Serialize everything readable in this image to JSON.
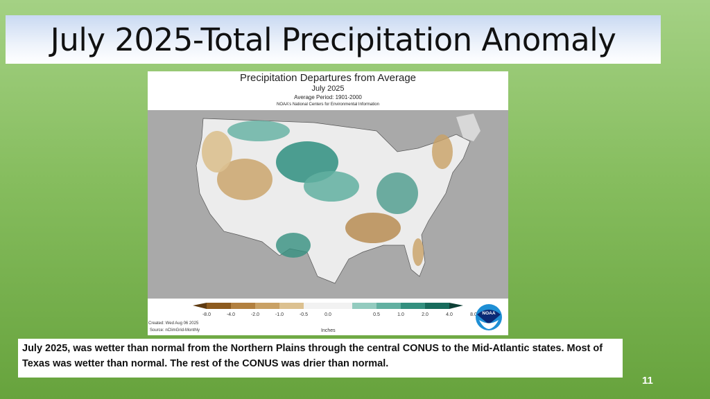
{
  "slide": {
    "title": "July 2025-Total Precipitation Anomaly",
    "caption": "July 2025, was wetter than normal from the Northern Plains through the central CONUS to the Mid-Atlantic states.  Most of Texas was wetter than normal. The rest of the CONUS was drier than normal.",
    "page_number": "11"
  },
  "map": {
    "title": "Precipitation Departures from Average",
    "subtitle": "July 2025",
    "average_period": "Average Period: 1901-2000",
    "credit": "NOAA's National Centers for Environmental Information",
    "created": "Created: Wed Aug 06 2025",
    "source": "Source: nClimGrid-Monthly",
    "units": "Inches",
    "logo_text": "NOAA",
    "legend": {
      "ticks": [
        "-8.0",
        "-4.0",
        "-2.0",
        "-1.0",
        "-0.5",
        "0.0",
        "0.5",
        "1.0",
        "2.0",
        "4.0",
        "8.0"
      ],
      "colors": [
        "#8c5a1e",
        "#b2803f",
        "#c9a165",
        "#dcc190",
        "#f2f2f2",
        "#f2f2f2",
        "#93cbbf",
        "#62b0a1",
        "#34907f",
        "#176b5c"
      ],
      "under_color": "#5e3a10",
      "over_color": "#0d3f36"
    }
  }
}
